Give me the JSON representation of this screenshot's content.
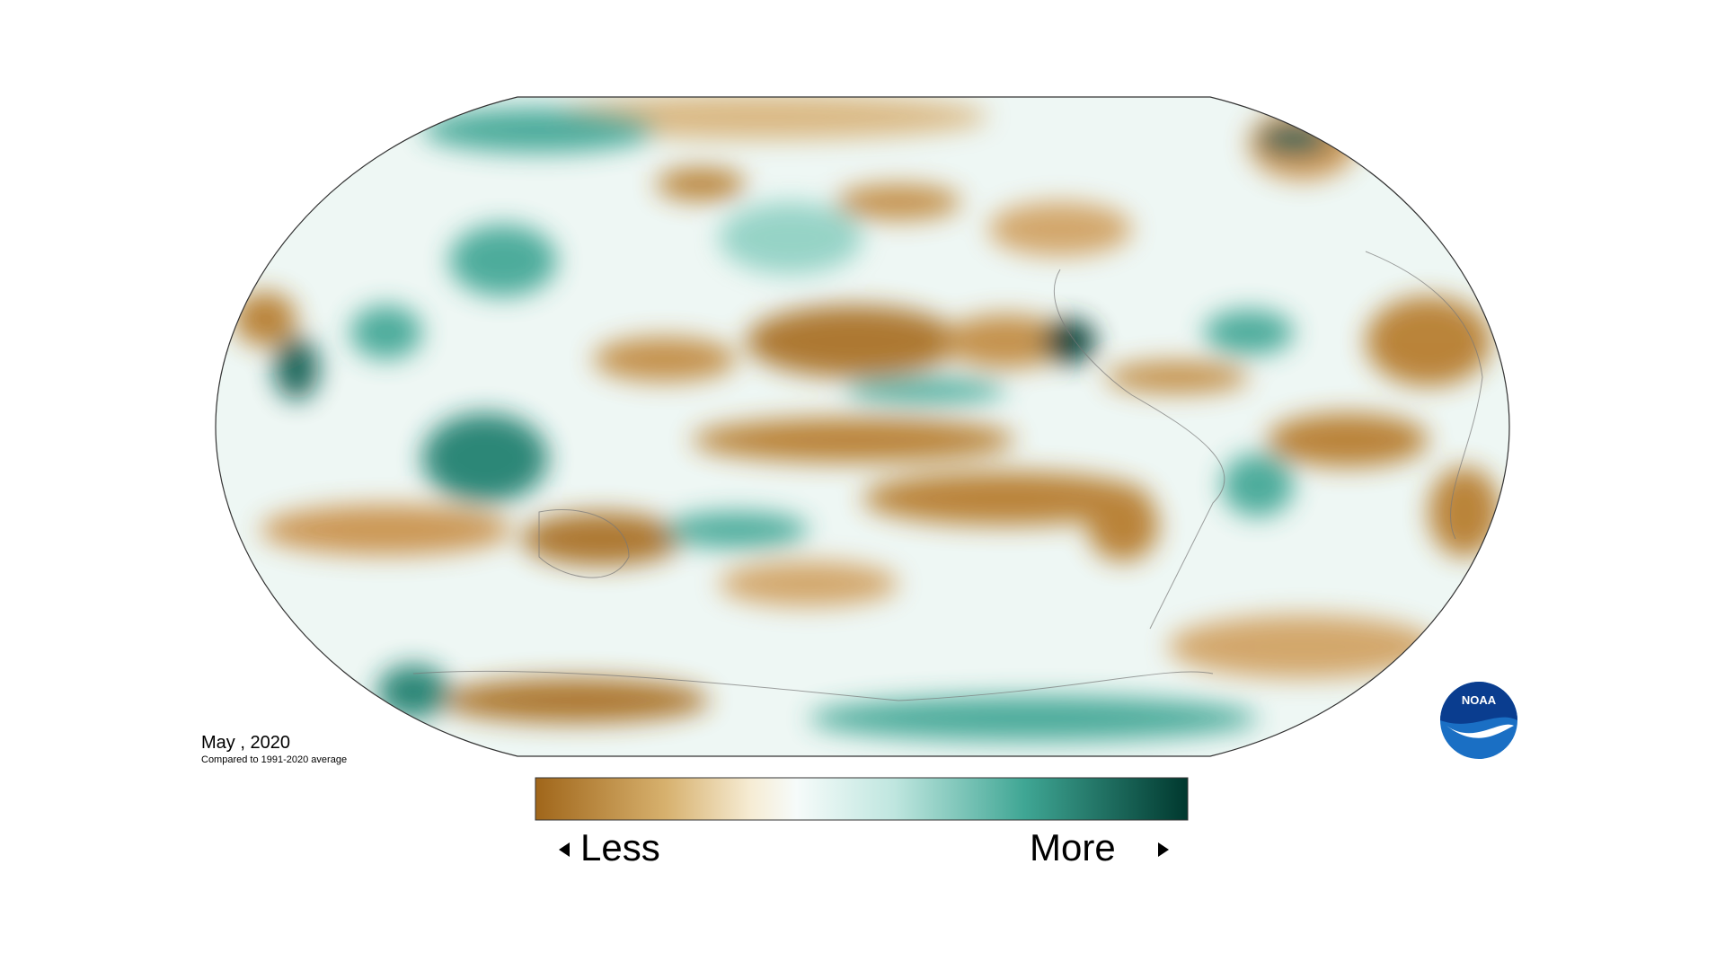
{
  "caption": {
    "title": "May , 2020",
    "subtitle": "Compared to 1991-2020 average"
  },
  "legend": {
    "low_label": "Less",
    "high_label": "More"
  },
  "logo": {
    "text": "NOAA"
  }
}
